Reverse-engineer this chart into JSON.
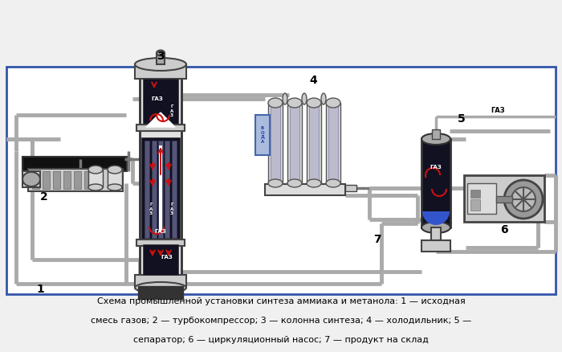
{
  "bg_color": "#f0f0f0",
  "diagram_bg": "#ffffff",
  "caption_line1": "Схема промышленной установки синтеза аммиака и метанола: 1 — исходная",
  "caption_line2": "смесь газов; 2 — турбокомпрессор; 3 — колонна синтеза; 4 — холодильник; 5 —",
  "caption_line3": "сепаратор; 6 — циркуляционный насос; 7 — продукт на склад",
  "pipe_color": "#aaaaaa",
  "pipe_dark": "#777777",
  "dark_body": "#111122",
  "mid_gray": "#888888",
  "light_gray": "#cccccc",
  "steel": "#bbbbbb",
  "red": "#cc1111",
  "blue_liq": "#3355cc",
  "white": "#ffffff",
  "black": "#111111",
  "border_blue": "#3355aa"
}
